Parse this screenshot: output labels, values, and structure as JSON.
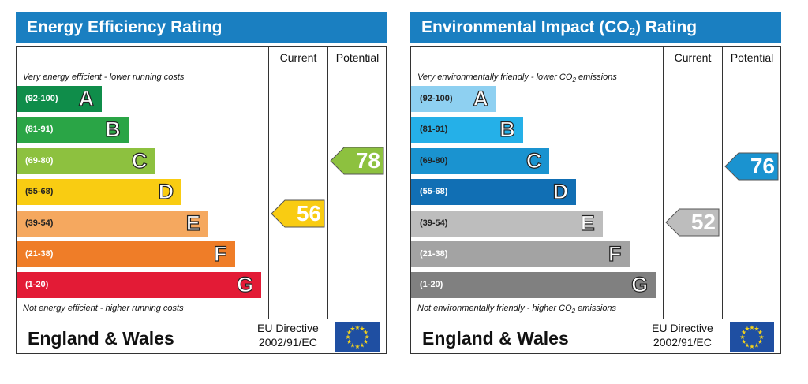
{
  "colors": {
    "header_blue": "#1a7fc1",
    "energy_bands": [
      "#0f8d4a",
      "#2aa546",
      "#8dc13f",
      "#f9cc12",
      "#f5a85f",
      "#ef7d28",
      "#e31b36"
    ],
    "environment_bands": [
      "#8ed0f1",
      "#25b0e8",
      "#1a93d0",
      "#116fb4",
      "#bdbdbd",
      "#a3a3a3",
      "#808080"
    ]
  },
  "chart_data": [
    {
      "type": "bar",
      "title": "Energy Efficiency Rating",
      "columns": [
        "Current",
        "Potential"
      ],
      "top_caption": "Very energy efficient - lower running costs",
      "bottom_caption": "Not energy efficient - higher running costs",
      "categories": [
        "A",
        "B",
        "C",
        "D",
        "E",
        "F",
        "G"
      ],
      "ranges": [
        "(92-100)",
        "(81-91)",
        "(69-80)",
        "(55-68)",
        "(39-54)",
        "(21-38)",
        "(1-20)"
      ],
      "current": {
        "value": 56,
        "band": "D",
        "color": "#f9cc12"
      },
      "potential": {
        "value": 78,
        "band": "C",
        "color": "#8dc13f"
      },
      "footer": {
        "region": "England & Wales",
        "directive_line1": "EU Directive",
        "directive_line2": "2002/91/EC"
      }
    },
    {
      "type": "bar",
      "title_main": "Environmental Impact (CO",
      "title_sub": "2",
      "title_end": ") Rating",
      "columns": [
        "Current",
        "Potential"
      ],
      "top_caption_main": "Very environmentally friendly - lower CO",
      "top_caption_sub": "2",
      "top_caption_end": " emissions",
      "bottom_caption_main": "Not environmentally friendly - higher CO",
      "bottom_caption_sub": "2",
      "bottom_caption_end": " emissions",
      "categories": [
        "A",
        "B",
        "C",
        "D",
        "E",
        "F",
        "G"
      ],
      "ranges": [
        "(92-100)",
        "(81-91)",
        "(69-80)",
        "(55-68)",
        "(39-54)",
        "(21-38)",
        "(1-20)"
      ],
      "current": {
        "value": 52,
        "band": "E",
        "color": "#bdbdbd"
      },
      "potential": {
        "value": 76,
        "band": "C",
        "color": "#1a93d0"
      },
      "footer": {
        "region": "England & Wales",
        "directive_line1": "EU Directive",
        "directive_line2": "2002/91/EC"
      }
    }
  ]
}
